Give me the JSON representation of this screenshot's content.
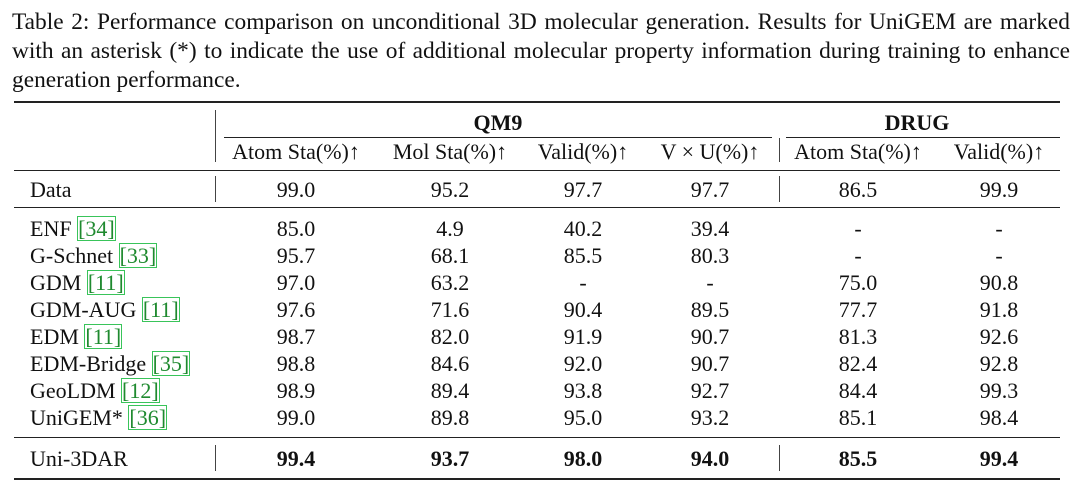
{
  "caption": "Table 2: Performance comparison on unconditional 3D molecular generation. Results for UniGEM are marked with an asterisk (*) to indicate the use of additional molecular property information during training to enhance generation performance.",
  "groups": {
    "qm9": "QM9",
    "drug": "DRUG"
  },
  "columns": [
    "Atom Sta(%)↑",
    "Mol Sta(%)↑",
    "Valid(%)↑",
    "V × U(%)↑",
    "Atom Sta(%)↑",
    "Valid(%)↑"
  ],
  "data_row": {
    "name": "Data",
    "values": [
      "99.0",
      "95.2",
      "97.7",
      "97.7",
      "86.5",
      "99.9"
    ]
  },
  "methods": [
    {
      "name": "ENF ",
      "cite": "[34]",
      "values": [
        "85.0",
        "4.9",
        "40.2",
        "39.4",
        "-",
        "-"
      ]
    },
    {
      "name": "G-Schnet ",
      "cite": "[33]",
      "values": [
        "95.7",
        "68.1",
        "85.5",
        "80.3",
        "-",
        "-"
      ]
    },
    {
      "name": "GDM ",
      "cite": "[11]",
      "values": [
        "97.0",
        "63.2",
        "-",
        "-",
        "75.0",
        "90.8"
      ]
    },
    {
      "name": "GDM-AUG ",
      "cite": "[11]",
      "values": [
        "97.6",
        "71.6",
        "90.4",
        "89.5",
        "77.7",
        "91.8"
      ]
    },
    {
      "name": "EDM ",
      "cite": "[11]",
      "values": [
        "98.7",
        "82.0",
        "91.9",
        "90.7",
        "81.3",
        "92.6"
      ]
    },
    {
      "name": "EDM-Bridge ",
      "cite": "[35]",
      "values": [
        "98.8",
        "84.6",
        "92.0",
        "90.7",
        "82.4",
        "92.8"
      ]
    },
    {
      "name": "GeoLDM ",
      "cite": "[12]",
      "values": [
        "98.9",
        "89.4",
        "93.8",
        "92.7",
        "84.4",
        "99.3"
      ]
    },
    {
      "name": "UniGEM* ",
      "cite": "[36]",
      "values": [
        "99.0",
        "89.8",
        "95.0",
        "93.2",
        "85.1",
        "98.4"
      ]
    }
  ],
  "ours": {
    "name": "Uni-3DAR",
    "values": [
      "99.4",
      "93.7",
      "98.0",
      "94.0",
      "85.5",
      "99.4"
    ]
  }
}
